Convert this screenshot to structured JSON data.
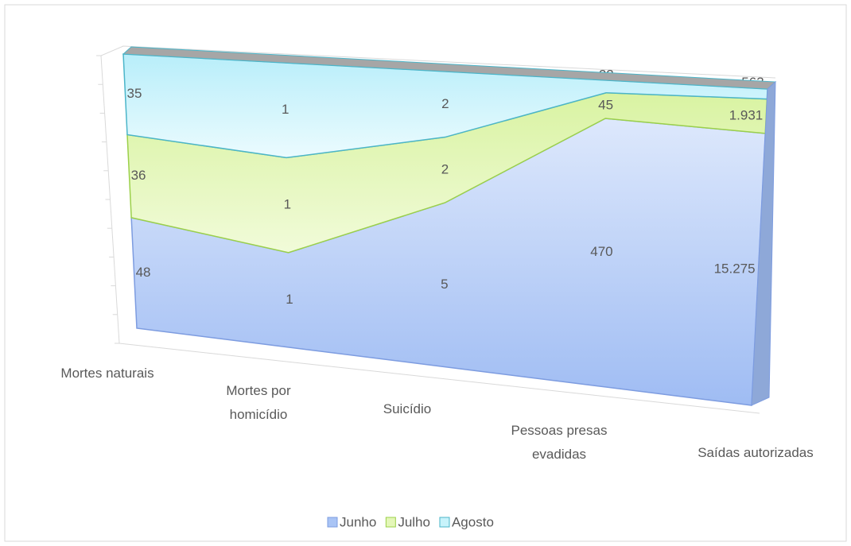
{
  "chart_data": {
    "type": "area",
    "stacking": "percent",
    "categories": [
      "Mortes naturais",
      "Mortes por homicídio",
      "Suicídio",
      "Pessoas presas evadidas",
      "Saídas autorizadas"
    ],
    "series": [
      {
        "name": "Junho",
        "color": "#a9c4f5",
        "values": [
          48,
          1,
          5,
          470,
          15275
        ],
        "value_labels": [
          "48",
          "1",
          "5",
          "470",
          "15.275"
        ]
      },
      {
        "name": "Julho",
        "color": "#e4f7b8",
        "values": [
          36,
          1,
          2,
          45,
          1931
        ],
        "value_labels": [
          "36",
          "1",
          "2",
          "45",
          "1.931"
        ]
      },
      {
        "name": "Agosto",
        "color": "#c8f3fb",
        "values": [
          35,
          1,
          2,
          22,
          563
        ],
        "value_labels": [
          "35",
          "1",
          "2",
          "22",
          "563"
        ]
      }
    ],
    "legend": "bottom"
  }
}
